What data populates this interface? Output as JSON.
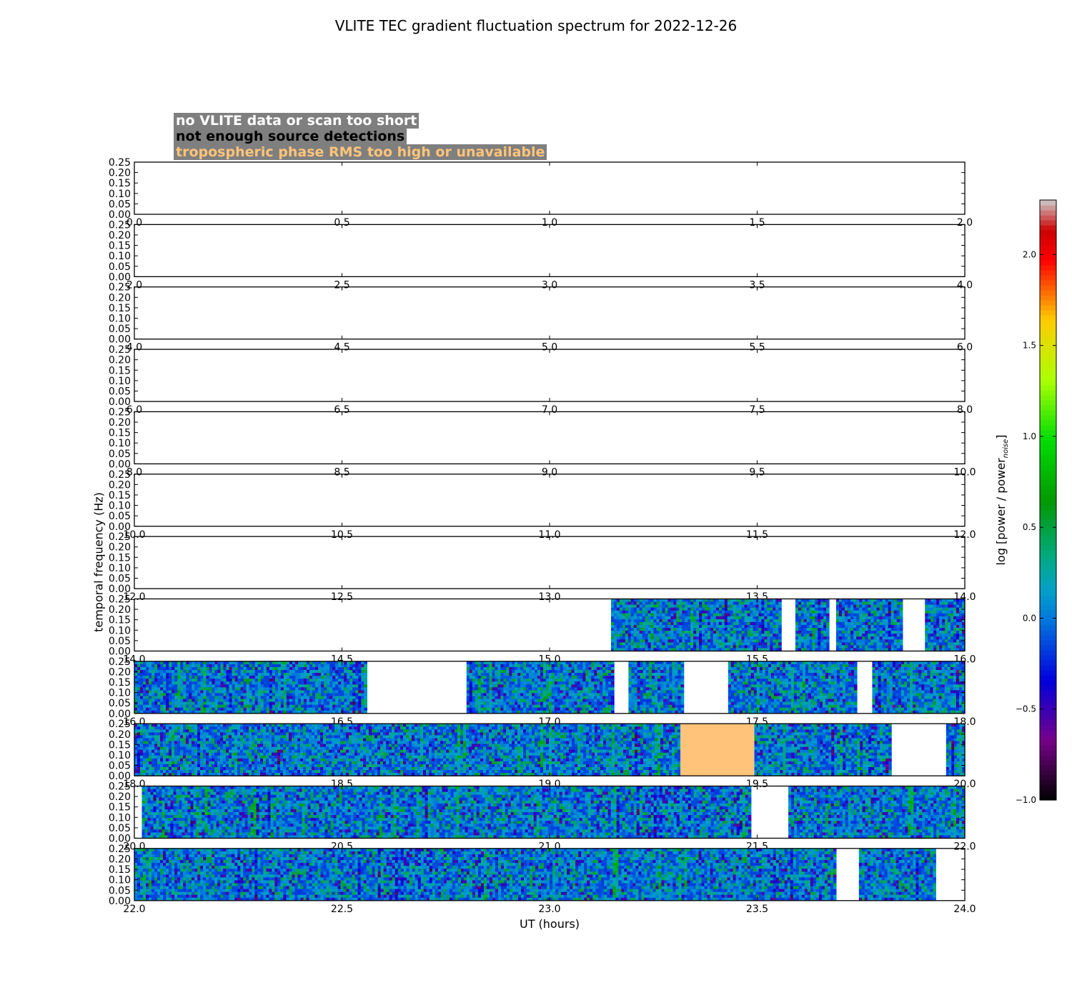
{
  "title": "VLITE TEC gradient fluctuation spectrum for 2022-12-26",
  "legend": [
    {
      "text": "no VLITE data or scan too short",
      "color": "#ffffff"
    },
    {
      "text": "not enough source detections",
      "color": "#000000"
    },
    {
      "text": "tropospheric phase RMS too high or unavailable",
      "color": "#ffc47a"
    }
  ],
  "chart_data": {
    "type": "heatmap",
    "title": "VLITE TEC gradient fluctuation spectrum for 2022-12-26",
    "xlabel": "UT (hours)",
    "ylabel": "temporal frequency (Hz)",
    "ylim": [
      0,
      0.25
    ],
    "y_ticks": [
      "0.00",
      "0.05",
      "0.10",
      "0.15",
      "0.20",
      "0.25"
    ],
    "colorbar": {
      "label": "log [power / power",
      "label_subscript": "noise",
      "label_end": "]",
      "range": [
        -1.0,
        2.3
      ],
      "ticks": [
        "−1.0",
        "−0.5",
        "0.0",
        "0.5",
        "1.0",
        "1.5",
        "2.0"
      ],
      "tick_values": [
        -1.0,
        -0.5,
        0.0,
        0.5,
        1.0,
        1.5,
        2.0
      ]
    },
    "panels": [
      {
        "xlim": [
          0,
          2
        ],
        "x_ticks": [
          "0.0",
          "0.5",
          "1.0",
          "1.5",
          "2.0"
        ],
        "data_segments": [],
        "flagged_segments": []
      },
      {
        "xlim": [
          2,
          4
        ],
        "x_ticks": [
          "2.0",
          "2.5",
          "3.0",
          "3.5",
          "4.0"
        ],
        "data_segments": [],
        "flagged_segments": []
      },
      {
        "xlim": [
          4,
          6
        ],
        "x_ticks": [
          "4.0",
          "4.5",
          "5.0",
          "5.5",
          "6.0"
        ],
        "data_segments": [],
        "flagged_segments": []
      },
      {
        "xlim": [
          6,
          8
        ],
        "x_ticks": [
          "6.0",
          "6.5",
          "7.0",
          "7.5",
          "8.0"
        ],
        "data_segments": [],
        "flagged_segments": []
      },
      {
        "xlim": [
          8,
          10
        ],
        "x_ticks": [
          "8.0",
          "8.5",
          "9.0",
          "9.5",
          "10.0"
        ],
        "data_segments": [],
        "flagged_segments": []
      },
      {
        "xlim": [
          10,
          12
        ],
        "x_ticks": [
          "10.0",
          "10.5",
          "11.0",
          "11.5",
          "12.0"
        ],
        "data_segments": [],
        "flagged_segments": []
      },
      {
        "xlim": [
          12,
          14
        ],
        "x_ticks": [
          "12.0",
          "12.5",
          "13.0",
          "13.5",
          "14.0"
        ],
        "data_segments": [],
        "flagged_segments": []
      },
      {
        "xlim": [
          14,
          16
        ],
        "x_ticks": [
          "14.0",
          "14.5",
          "15.0",
          "15.5",
          "16.0"
        ],
        "data_segments": [
          [
            15.148,
            15.558
          ],
          [
            15.592,
            15.673
          ],
          [
            15.69,
            15.85
          ],
          [
            15.904,
            16.0
          ]
        ],
        "flagged_segments": []
      },
      {
        "xlim": [
          16,
          18
        ],
        "x_ticks": [
          "16.0",
          "16.5",
          "17.0",
          "17.5",
          "18.0"
        ],
        "data_segments": [
          [
            16.0,
            16.56
          ],
          [
            16.8,
            17.155
          ],
          [
            17.19,
            17.323
          ],
          [
            17.43,
            17.74
          ],
          [
            17.777,
            18.0
          ]
        ],
        "flagged_segments": []
      },
      {
        "xlim": [
          18,
          20
        ],
        "x_ticks": [
          "18.0",
          "18.5",
          "19.0",
          "19.5",
          "20.0"
        ],
        "data_segments": [
          [
            18.0,
            19.315
          ],
          [
            19.493,
            19.823
          ],
          [
            19.955,
            20.0
          ]
        ],
        "flagged_segments": [
          [
            19.315,
            19.493
          ]
        ]
      },
      {
        "xlim": [
          20,
          22
        ],
        "x_ticks": [
          "20.0",
          "20.5",
          "21.0",
          "21.5",
          "22.0"
        ],
        "data_segments": [
          [
            20.018,
            21.485
          ],
          [
            21.575,
            22.0
          ]
        ],
        "flagged_segments": []
      },
      {
        "xlim": [
          22,
          24
        ],
        "x_ticks": [
          "22.0",
          "22.5",
          "23.0",
          "23.5",
          "24.0"
        ],
        "data_segments": [
          [
            22.0,
            23.69
          ],
          [
            23.745,
            23.93
          ]
        ],
        "flagged_segments": []
      }
    ]
  }
}
